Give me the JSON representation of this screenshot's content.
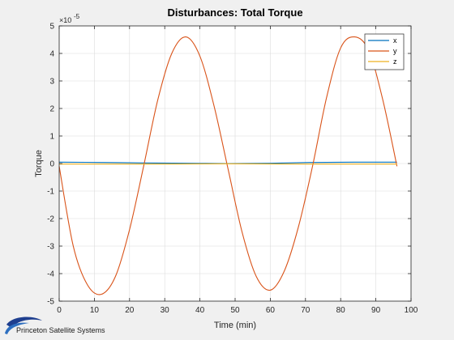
{
  "chart_data": {
    "type": "line",
    "title": "Disturbances: Total Torque",
    "xlabel": "Time (min)",
    "ylabel": "Torque",
    "y_exponent_base": "×10",
    "y_exponent_power": "-5",
    "xlim": [
      0,
      100
    ],
    "ylim": [
      -5,
      5
    ],
    "xticks": [
      0,
      10,
      20,
      30,
      40,
      50,
      60,
      70,
      80,
      90,
      100
    ],
    "yticks": [
      -5,
      -4,
      -3,
      -2,
      -1,
      0,
      1,
      2,
      3,
      4,
      5
    ],
    "grid": true,
    "legend_position": "top-right",
    "series": [
      {
        "name": "x",
        "color": "#0072bd",
        "x": [
          0,
          12,
          24,
          36,
          48,
          60,
          72,
          84,
          96
        ],
        "y": [
          0.05,
          0.04,
          0.02,
          0.01,
          0.0,
          0.01,
          0.04,
          0.05,
          0.05
        ]
      },
      {
        "name": "y",
        "color": "#d95319",
        "x": [
          0,
          4,
          8,
          12,
          16,
          20,
          24,
          28,
          32,
          36,
          40,
          44,
          48,
          52,
          56,
          60,
          64,
          68,
          72,
          76,
          80,
          84,
          88,
          92,
          96
        ],
        "y": [
          -0.1,
          -3.0,
          -4.4,
          -4.75,
          -4.1,
          -2.4,
          -0.1,
          2.3,
          4.0,
          4.6,
          3.9,
          2.1,
          -0.2,
          -2.5,
          -4.1,
          -4.6,
          -3.9,
          -2.3,
          -0.1,
          2.4,
          4.2,
          4.6,
          4.1,
          2.3,
          -0.1
        ]
      },
      {
        "name": "z",
        "color": "#edb120",
        "x": [
          0,
          24,
          48,
          72,
          96
        ],
        "y": [
          -0.02,
          -0.02,
          -0.01,
          -0.02,
          -0.02
        ]
      }
    ]
  },
  "footer": {
    "company": "Princeton Satellite Systems"
  }
}
